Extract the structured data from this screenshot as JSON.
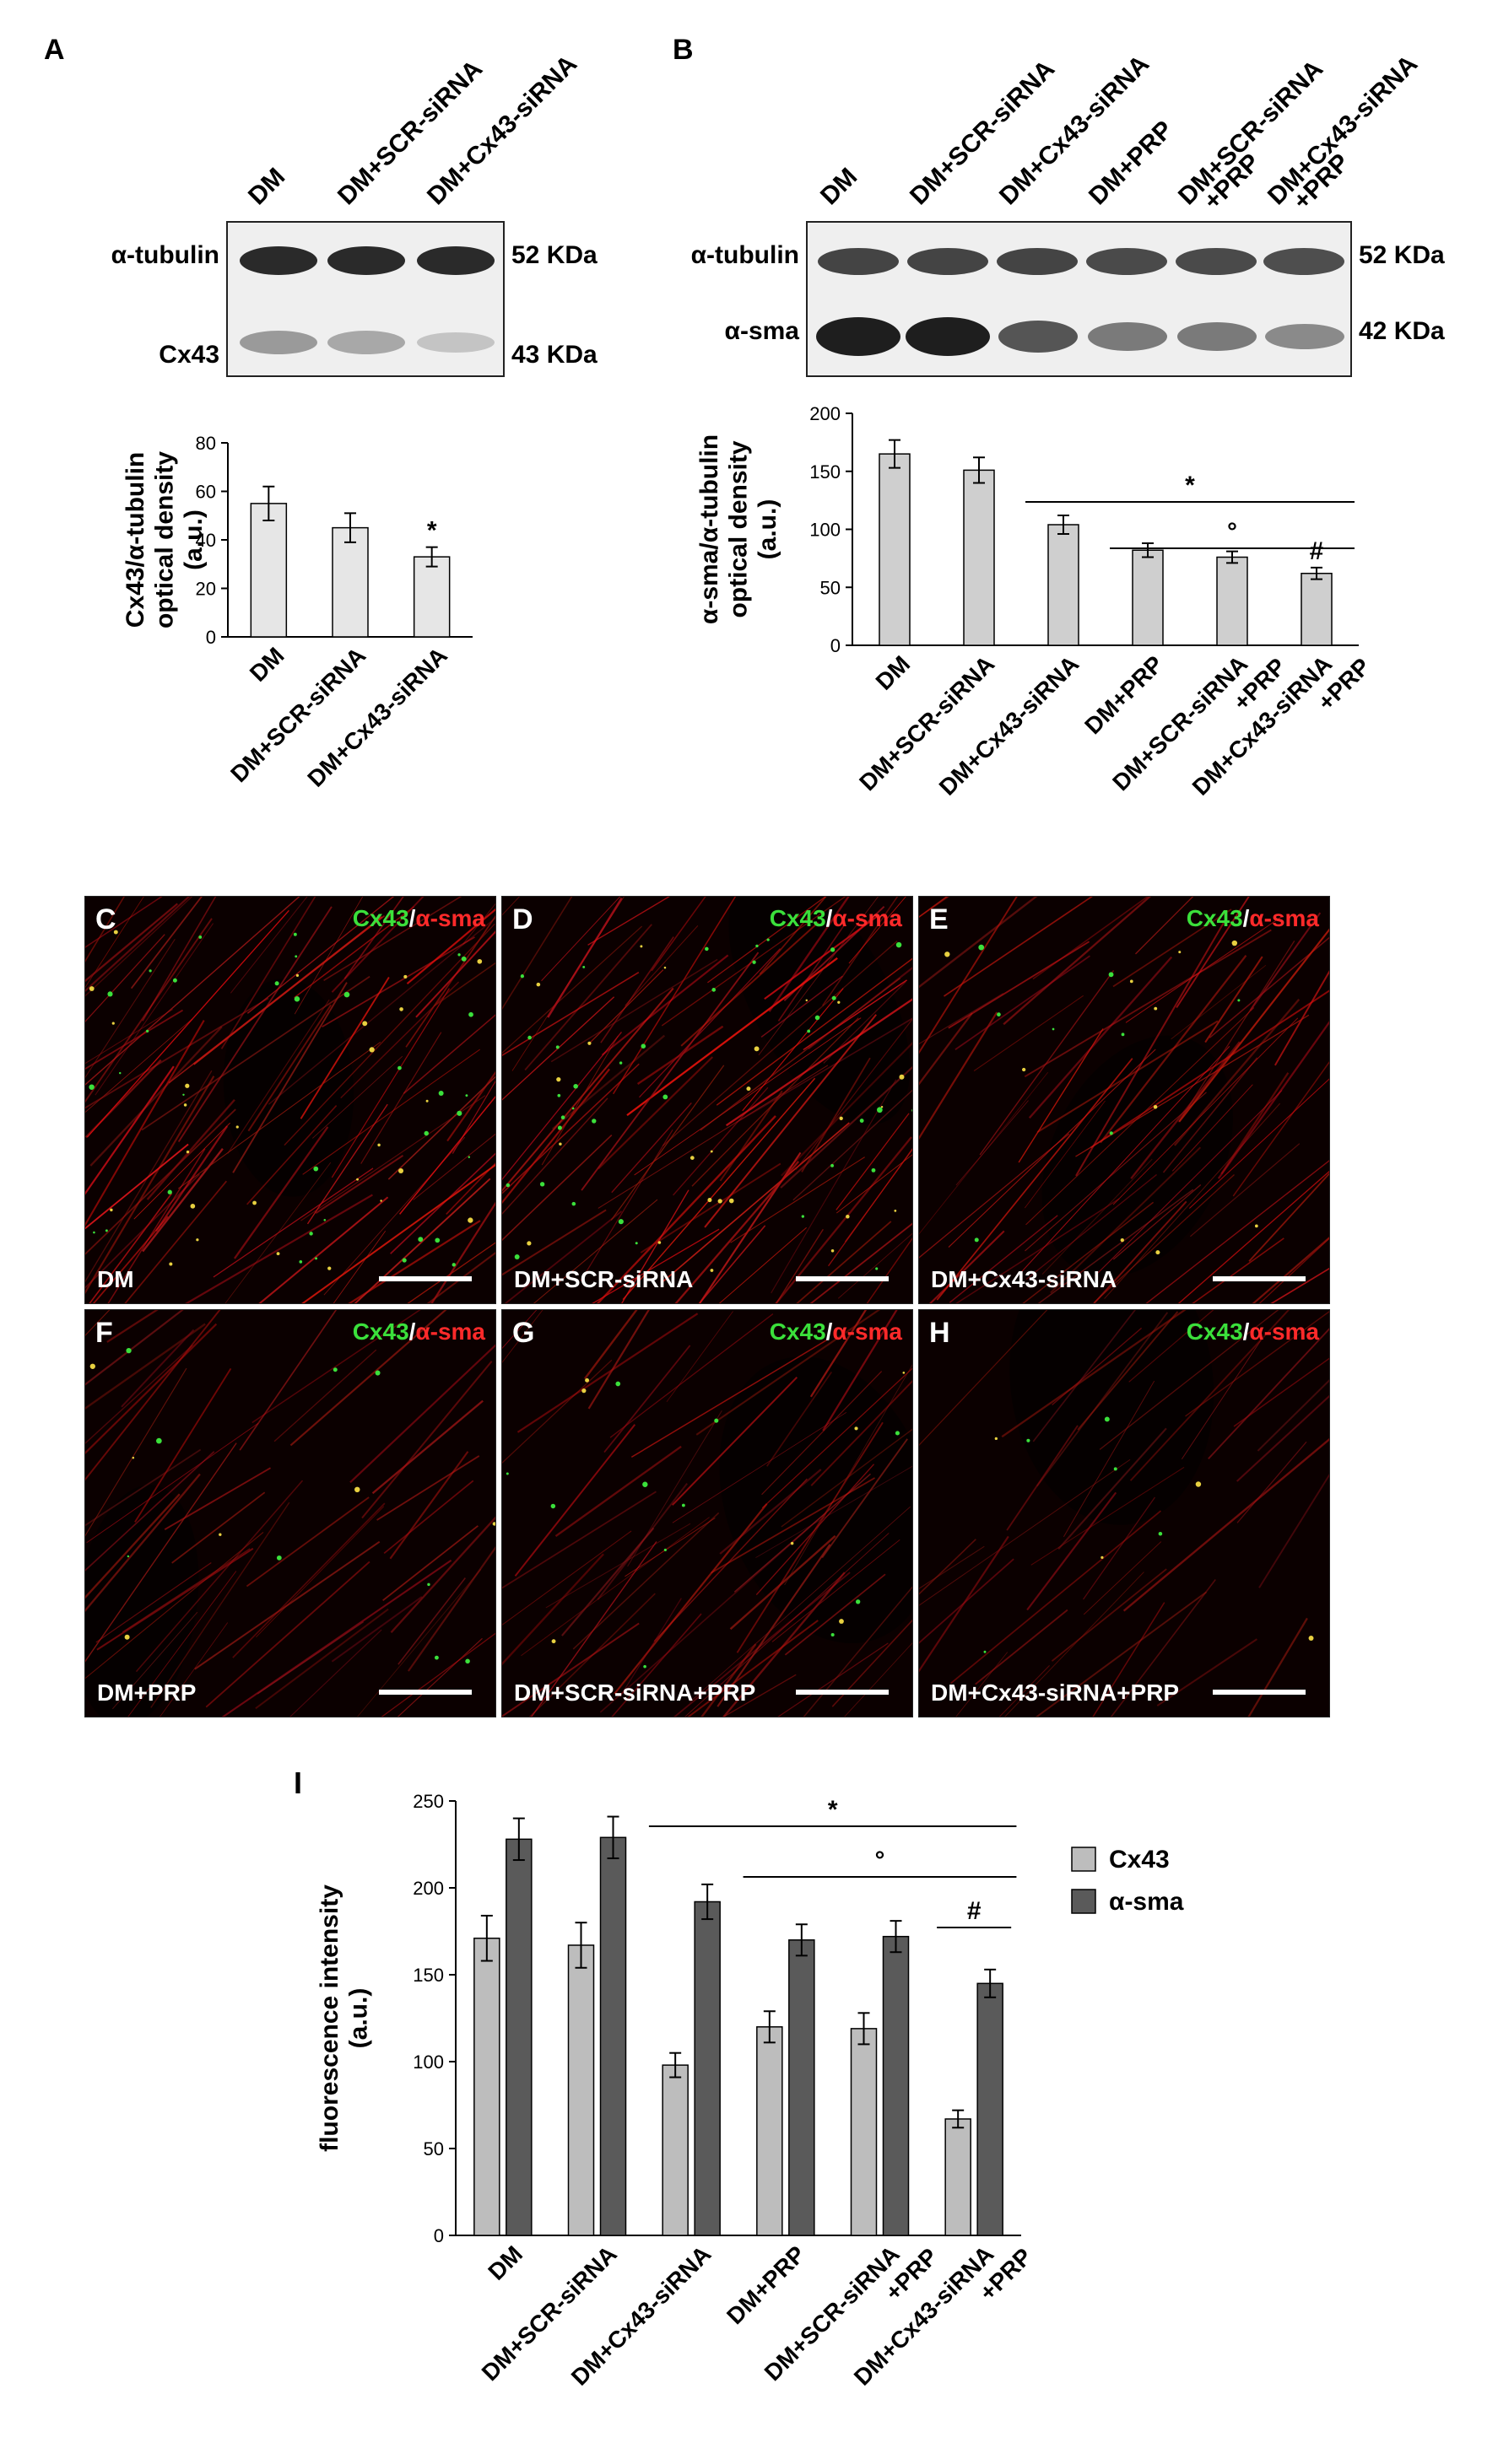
{
  "panels": {
    "A": {
      "letter": "A",
      "lanes": [
        "DM",
        "DM+SCR-siRNA",
        "DM+Cx43-siRNA"
      ],
      "rows": [
        {
          "label": "α-tubulin",
          "size": "52 KDa"
        },
        {
          "label": "Cx43",
          "size": "43 KDa"
        }
      ]
    },
    "B": {
      "letter": "B",
      "lanes": [
        "DM",
        "DM+SCR-siRNA",
        "DM+Cx43-siRNA",
        "DM+PRP",
        "DM+SCR-siRNA\n+PRP",
        "DM+Cx43-siRNA\n+PRP"
      ],
      "rows": [
        {
          "label": "α-tubulin",
          "size": "52 KDa"
        },
        {
          "label": "α-sma",
          "size": "42 KDa"
        }
      ]
    }
  },
  "micrographs": [
    {
      "letter": "C",
      "condition": "DM",
      "marker_a": "Cx43",
      "sep": "/",
      "marker_b": "α-sma",
      "intensity": 1.0,
      "green": 1.0
    },
    {
      "letter": "D",
      "condition": "DM+SCR-siRNA",
      "marker_a": "Cx43",
      "sep": "/",
      "marker_b": "α-sma",
      "intensity": 1.0,
      "green": 1.0
    },
    {
      "letter": "E",
      "condition": "DM+Cx43-siRNA",
      "marker_a": "Cx43",
      "sep": "/",
      "marker_b": "α-sma",
      "intensity": 0.8,
      "green": 0.3
    },
    {
      "letter": "F",
      "condition": "DM+PRP",
      "marker_a": "Cx43",
      "sep": "/",
      "marker_b": "α-sma",
      "intensity": 0.6,
      "green": 0.25
    },
    {
      "letter": "G",
      "condition": "DM+SCR-siRNA+PRP",
      "marker_a": "Cx43",
      "sep": "/",
      "marker_b": "α-sma",
      "intensity": 0.7,
      "green": 0.3
    },
    {
      "letter": "H",
      "condition": "DM+Cx43-siRNA+PRP",
      "marker_a": "Cx43",
      "sep": "/",
      "marker_b": "α-sma",
      "intensity": 0.45,
      "green": 0.15
    }
  ],
  "chart_data": [
    {
      "id": "A",
      "type": "bar",
      "categories": [
        "DM",
        "DM+SCR-siRNA",
        "DM+Cx43-siRNA"
      ],
      "values": [
        55,
        45,
        33
      ],
      "errors": [
        7,
        6,
        4
      ],
      "ylabel": [
        "Cx43/α-tubulin",
        "optical density",
        "(a.u.)"
      ],
      "ylim": [
        0,
        80
      ],
      "yticks": [
        0,
        20,
        40,
        60,
        80
      ],
      "annotations": [
        {
          "category": 2,
          "text": "*"
        }
      ],
      "bar_color": "#e6e6e6"
    },
    {
      "id": "B",
      "type": "bar",
      "categories": [
        "DM",
        "DM+SCR-siRNA",
        "DM+Cx43-siRNA",
        "DM+PRP",
        "DM+SCR-siRNA\n+PRP",
        "DM+Cx43-siRNA\n+PRP"
      ],
      "values": [
        165,
        151,
        104,
        82,
        76,
        62
      ],
      "errors": [
        12,
        11,
        8,
        6,
        5,
        5
      ],
      "ylabel": [
        "α-sma/α-tubulin",
        "optical density",
        "(a.u.)"
      ],
      "ylim": [
        0,
        200
      ],
      "yticks": [
        0,
        50,
        100,
        150,
        200
      ],
      "annotations": [
        {
          "type": "line",
          "from": 2,
          "to": 5,
          "text": "*"
        },
        {
          "type": "line",
          "from": 3,
          "to": 5,
          "text": "°"
        },
        {
          "category": 5,
          "text": "#"
        }
      ],
      "bar_color": "#cfcfcf"
    },
    {
      "id": "I",
      "type": "bar",
      "title_letter": "I",
      "categories": [
        "DM",
        "DM+SCR-siRNA",
        "DM+Cx43-siRNA",
        "DM+PRP",
        "DM+SCR-siRNA\n+PRP",
        "DM+Cx43-siRNA\n+PRP"
      ],
      "series": [
        {
          "name": "Cx43",
          "values": [
            171,
            167,
            98,
            120,
            119,
            67
          ],
          "errors": [
            13,
            13,
            7,
            9,
            9,
            5
          ],
          "color": "#bdbdbd"
        },
        {
          "name": "α-sma",
          "values": [
            228,
            229,
            192,
            170,
            172,
            145
          ],
          "errors": [
            12,
            12,
            10,
            9,
            9,
            8
          ],
          "color": "#5a5a5a"
        }
      ],
      "ylabel": [
        "fluorescence intensity",
        "(a.u.)"
      ],
      "ylim": [
        0,
        250
      ],
      "yticks": [
        0,
        50,
        100,
        150,
        200,
        250
      ],
      "annotations": [
        {
          "type": "line",
          "from": 2,
          "to": 5,
          "text": "*"
        },
        {
          "type": "line",
          "from": 3,
          "to": 5,
          "text": "°"
        },
        {
          "type": "line",
          "from": 5,
          "to": 5,
          "text": "#"
        }
      ],
      "legend": "right"
    }
  ]
}
